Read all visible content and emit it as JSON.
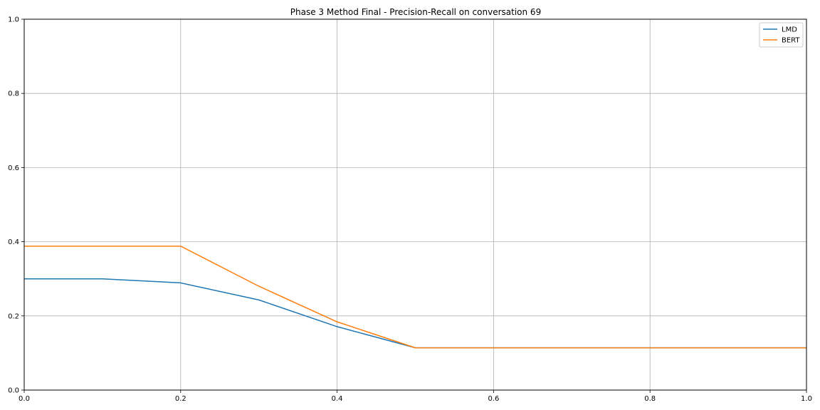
{
  "chart_data": {
    "type": "line",
    "title": "Phase 3 Method Final - Precision-Recall on conversation 69",
    "xlabel": "",
    "ylabel": "",
    "xlim": [
      0.0,
      1.0
    ],
    "ylim": [
      0.0,
      1.0
    ],
    "xticks": [
      "0.0",
      "0.2",
      "0.4",
      "0.6",
      "0.8",
      "1.0"
    ],
    "yticks": [
      "0.0",
      "0.2",
      "0.4",
      "0.6",
      "0.8",
      "1.0"
    ],
    "grid": true,
    "legend_position": "top-right",
    "x": [
      0.0,
      0.1,
      0.2,
      0.3,
      0.4,
      0.5,
      0.6,
      0.7,
      0.8,
      0.9,
      1.0
    ],
    "series": [
      {
        "name": "LMD",
        "color": "#1f77b4",
        "values": [
          0.3,
          0.3,
          0.289,
          0.243,
          0.171,
          0.114,
          0.114,
          0.114,
          0.114,
          0.114,
          0.114
        ]
      },
      {
        "name": "BERT",
        "color": "#ff7f0e",
        "values": [
          0.388,
          0.388,
          0.388,
          0.28,
          0.184,
          0.114,
          0.114,
          0.114,
          0.114,
          0.114,
          0.114
        ]
      }
    ]
  }
}
